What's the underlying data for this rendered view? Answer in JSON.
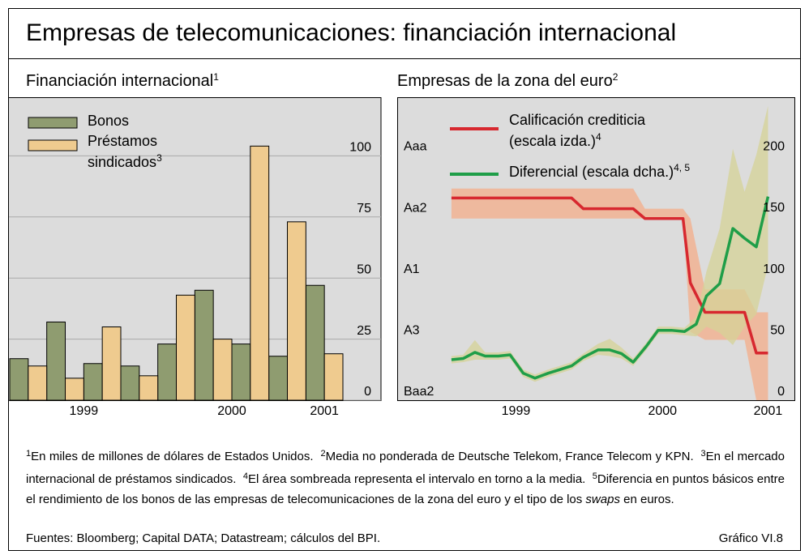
{
  "title": "Empresas de telecomunicaciones: financiación internacional",
  "chart_data": [
    {
      "type": "bar",
      "title": "Financiación internacional",
      "title_note": "1",
      "categories": [
        null,
        null,
        null,
        null,
        null,
        null,
        null,
        null,
        null
      ],
      "series": [
        {
          "name": "Bonos",
          "color": "#8f9c70",
          "values": [
            17,
            32,
            15,
            14,
            23,
            45,
            23,
            18,
            47
          ]
        },
        {
          "name": "Préstamos sindicados",
          "name_note": "3",
          "color": "#efcb8f",
          "values": [
            14,
            9,
            30,
            10,
            43,
            25,
            104,
            73,
            19
          ]
        }
      ],
      "ylim": [
        0,
        124
      ],
      "yticks": [
        0,
        25,
        50,
        75,
        100
      ],
      "grid": true,
      "xticks": [
        {
          "value": 1.5,
          "label": "1999"
        },
        {
          "value": 5.5,
          "label": "2000"
        },
        {
          "value": 8,
          "label": "2001"
        }
      ]
    },
    {
      "type": "line",
      "title": "Empresas de la zona del euro",
      "title_note": "2",
      "xlim": [
        1998.69,
        2001.4
      ],
      "xticks": [
        {
          "value": 1999.5,
          "label": "1999"
        },
        {
          "value": 2000.5,
          "label": "2000"
        },
        {
          "value": 2001.22,
          "label": "2001"
        }
      ],
      "ylim": [
        0,
        9.89
      ],
      "yticks": [
        {
          "value": 0,
          "label": "Baa2"
        },
        {
          "value": 2,
          "label": "A3"
        },
        {
          "value": 4,
          "label": "A1"
        },
        {
          "value": 6,
          "label": "Aa2"
        },
        {
          "value": 8,
          "label": "Aaa"
        }
      ],
      "y2lim": [
        0,
        247
      ],
      "y2ticks": [
        0,
        50,
        100,
        150,
        200
      ],
      "series": [
        {
          "name": "Calificación crediticia (escala izda.)",
          "name_note": "4",
          "color": "#d7282f",
          "band_color": "#f4ad8a",
          "x": [
            1999.06,
            1999.88,
            1999.96,
            2000.3,
            2000.38,
            2000.64,
            2000.69,
            2000.79,
            2001.06,
            2001.14,
            2001.22
          ],
          "values": [
            6.6,
            6.6,
            6.25,
            6.25,
            5.93,
            5.93,
            3.83,
            2.87,
            2.87,
            1.54,
            1.54
          ],
          "low": [
            5.93,
            5.93,
            5.93,
            5.93,
            5.93,
            5.93,
            2.23,
            1.97,
            1.97,
            0,
            0
          ],
          "high": [
            6.91,
            6.91,
            6.91,
            6.91,
            6.25,
            6.25,
            5.93,
            3.62,
            3.62,
            2.87,
            2.87
          ]
        },
        {
          "name": "Diferencial (escala dcha.)",
          "name_note": "4, 5",
          "axis": "y2",
          "color": "#1f9e48",
          "band_color": "#d6d397",
          "x": [
            1999.06,
            1999.14,
            1999.22,
            1999.29,
            1999.38,
            1999.46,
            1999.55,
            1999.63,
            1999.72,
            1999.8,
            1999.88,
            1999.96,
            2000.06,
            2000.14,
            2000.22,
            2000.3,
            2000.39,
            2000.47,
            2000.56,
            2000.65,
            2000.73,
            2000.8,
            2000.89,
            2000.98,
            2001.06,
            2001.14,
            2001.22
          ],
          "values": [
            33,
            34,
            39,
            36,
            36,
            37,
            22,
            18,
            22,
            25,
            28,
            35,
            41,
            41,
            38,
            31,
            44,
            57,
            57,
            56,
            62,
            85,
            95,
            140,
            132,
            125,
            166
          ],
          "low": [
            30,
            31,
            33,
            33,
            33,
            34,
            19,
            15,
            19,
            22,
            25,
            32,
            37,
            36,
            34,
            28,
            41,
            54,
            54,
            53,
            52,
            60,
            55,
            45,
            60,
            70,
            110
          ],
          "high": [
            36,
            37,
            49,
            39,
            39,
            40,
            25,
            21,
            25,
            28,
            31,
            38,
            46,
            50,
            43,
            34,
            47,
            60,
            60,
            59,
            68,
            105,
            140,
            205,
            170,
            200,
            240
          ]
        }
      ]
    }
  ],
  "footnotes": [
    {
      "marker": "1",
      "text": "En miles de millones de dólares de Estados Unidos."
    },
    {
      "marker": "2",
      "text": "Media no ponderada de Deutsche Telekom, France Telecom y KPN."
    },
    {
      "marker": "3",
      "text": "En el mercado internacional de préstamos sindicados."
    },
    {
      "marker": "4",
      "text": "El área sombreada representa el intervalo en torno a la media."
    },
    {
      "marker": "5",
      "text_parts": [
        "Diferencia en puntos básicos entre el rendimiento de los bonos de las empresas de telecomunicaciones de la zona del euro y el tipo de los ",
        "swaps",
        " en euros."
      ]
    }
  ],
  "sources": "Fuentes: Bloomberg; Capital DATA; Datastream; cálculos del BPI.",
  "figure_label": "Gráfico VI.8"
}
